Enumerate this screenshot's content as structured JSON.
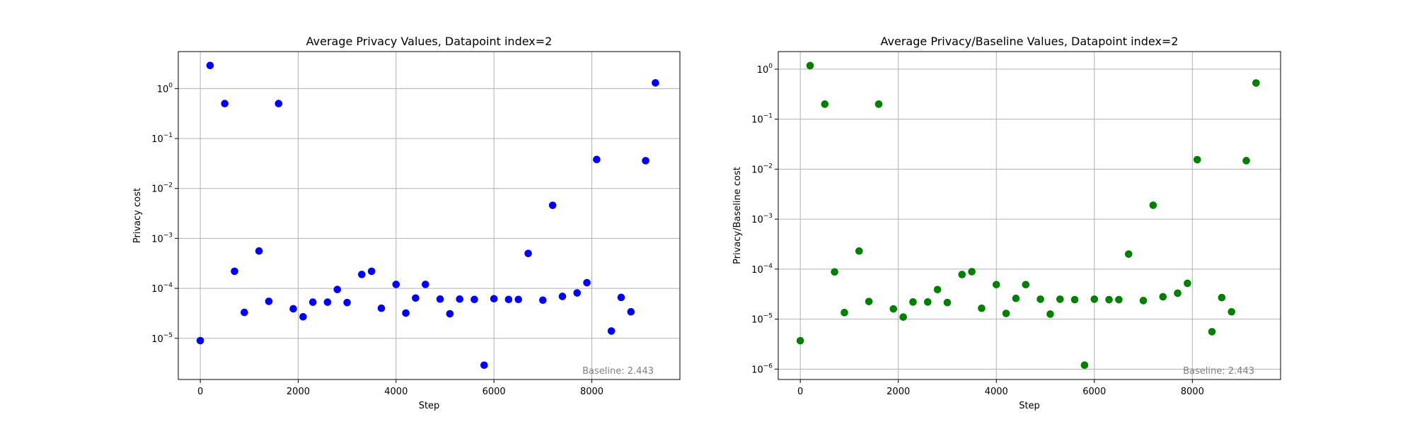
{
  "chart_data": [
    {
      "type": "scatter",
      "title": "Average Privacy Values, Datapoint index=2",
      "xlabel": "Step",
      "ylabel": "Privacy cost",
      "yscale": "log",
      "xlim": [
        -450,
        9800
      ],
      "ylim": [
        1.5e-06,
        5.5
      ],
      "xticks": [
        0,
        2000,
        4000,
        6000,
        8000
      ],
      "xtick_labels": [
        "0",
        "2000",
        "4000",
        "6000",
        "8000"
      ],
      "yticks": [
        1e-05,
        0.0001,
        0.001,
        0.01,
        0.1,
        1
      ],
      "ytick_labels": [
        {
          "base": "10",
          "exp": "−5"
        },
        {
          "base": "10",
          "exp": "−4"
        },
        {
          "base": "10",
          "exp": "−3"
        },
        {
          "base": "10",
          "exp": "−2"
        },
        {
          "base": "10",
          "exp": "−1"
        },
        {
          "base": "10",
          "exp": "0"
        }
      ],
      "grid": true,
      "color": "#0000ff",
      "annotation": "Baseline: 2.443",
      "series": [
        {
          "x": [
            0,
            200,
            500,
            700,
            900,
            1200,
            1400,
            1600,
            1900,
            2100,
            2300,
            2600,
            2800,
            3000,
            3300,
            3500,
            3700,
            4000,
            4200,
            4400,
            4600,
            4900,
            5100,
            5300,
            5600,
            5800,
            6000,
            6300,
            6500,
            6700,
            7000,
            7200,
            7400,
            7700,
            7900,
            8100,
            8400,
            8600,
            8800,
            9100,
            9300
          ],
          "y": [
            9e-06,
            2.9,
            0.5,
            0.00022,
            3.3e-05,
            0.00056,
            5.5e-05,
            0.5,
            3.9e-05,
            2.7e-05,
            5.3e-05,
            5.3e-05,
            9.5e-05,
            5.2e-05,
            0.00019,
            0.00022,
            4e-05,
            0.00012,
            3.2e-05,
            6.4e-05,
            0.00012,
            6.1e-05,
            3.1e-05,
            6.1e-05,
            6e-05,
            2.9e-06,
            6.2e-05,
            6e-05,
            6e-05,
            0.0005,
            5.8e-05,
            0.0046,
            6.9e-05,
            8.1e-05,
            0.00013,
            0.038,
            1.4e-05,
            6.6e-05,
            3.4e-05,
            0.036,
            1.3
          ]
        }
      ]
    },
    {
      "type": "scatter",
      "title": "Average Privacy/Baseline Values, Datapoint index=2",
      "xlabel": "Step",
      "ylabel": "Privacy/Baseline cost",
      "yscale": "log",
      "xlim": [
        -450,
        9800
      ],
      "ylim": [
        6.2e-07,
        2.25
      ],
      "xticks": [
        0,
        2000,
        4000,
        6000,
        8000
      ],
      "xtick_labels": [
        "0",
        "2000",
        "4000",
        "6000",
        "8000"
      ],
      "yticks": [
        1e-06,
        1e-05,
        0.0001,
        0.001,
        0.01,
        0.1,
        1
      ],
      "ytick_labels": [
        {
          "base": "10",
          "exp": "−6"
        },
        {
          "base": "10",
          "exp": "−5"
        },
        {
          "base": "10",
          "exp": "−4"
        },
        {
          "base": "10",
          "exp": "−3"
        },
        {
          "base": "10",
          "exp": "−2"
        },
        {
          "base": "10",
          "exp": "−1"
        },
        {
          "base": "10",
          "exp": "0"
        }
      ],
      "grid": true,
      "color": "#008000",
      "annotation": "Baseline: 2.443",
      "series": [
        {
          "x": [
            0,
            200,
            500,
            700,
            900,
            1200,
            1400,
            1600,
            1900,
            2100,
            2300,
            2600,
            2800,
            3000,
            3300,
            3500,
            3700,
            4000,
            4200,
            4400,
            4600,
            4900,
            5100,
            5300,
            5600,
            5800,
            6000,
            6300,
            6500,
            6700,
            7000,
            7200,
            7400,
            7700,
            7900,
            8100,
            8400,
            8600,
            8800,
            9100,
            9300
          ],
          "y": [
            3.7e-06,
            1.18,
            0.2,
            8.8e-05,
            1.35e-05,
            0.00023,
            2.25e-05,
            0.2,
            1.6e-05,
            1.1e-05,
            2.2e-05,
            2.2e-05,
            3.9e-05,
            2.15e-05,
            7.8e-05,
            8.9e-05,
            1.65e-05,
            4.9e-05,
            1.3e-05,
            2.6e-05,
            4.9e-05,
            2.5e-05,
            1.26e-05,
            2.5e-05,
            2.45e-05,
            1.2e-06,
            2.5e-05,
            2.45e-05,
            2.45e-05,
            0.0002,
            2.35e-05,
            0.0019,
            2.8e-05,
            3.3e-05,
            5.2e-05,
            0.0155,
            5.6e-06,
            2.7e-05,
            1.4e-05,
            0.0148,
            0.53
          ]
        }
      ]
    }
  ]
}
